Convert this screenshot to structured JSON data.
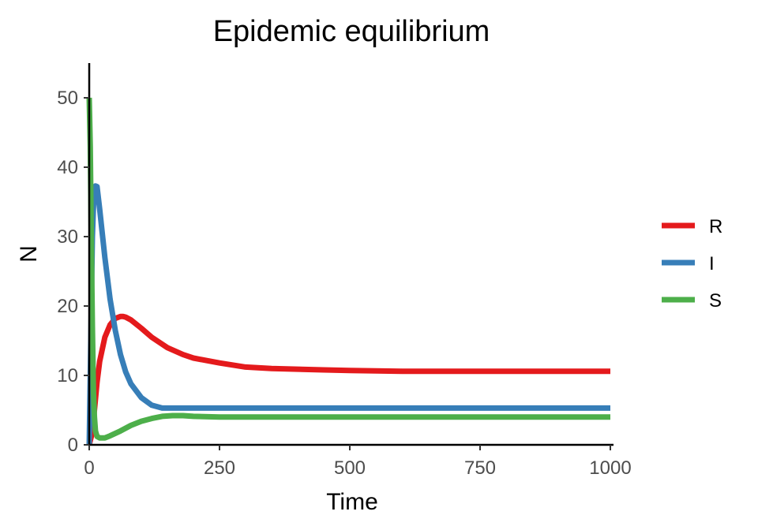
{
  "chart_data": {
    "type": "line",
    "title": "Epidemic equilibrium",
    "xlabel": "Time",
    "ylabel": "N",
    "xlim": [
      0,
      1000
    ],
    "ylim": [
      0,
      55
    ],
    "xticks": [
      0,
      250,
      500,
      750,
      1000
    ],
    "yticks": [
      0,
      10,
      20,
      30,
      40,
      50
    ],
    "grid": false,
    "legend_position": "right",
    "series": [
      {
        "name": "R",
        "color": "#e41a1c",
        "x": [
          0,
          5,
          10,
          15,
          20,
          30,
          40,
          50,
          60,
          65,
          70,
          80,
          100,
          120,
          150,
          180,
          200,
          250,
          300,
          350,
          400,
          450,
          500,
          600,
          700,
          800,
          900,
          1000
        ],
        "y": [
          0,
          1.5,
          5,
          9,
          12,
          15.5,
          17.3,
          18.2,
          18.5,
          18.5,
          18.4,
          18,
          16.8,
          15.5,
          14,
          13,
          12.5,
          11.8,
          11.2,
          11,
          10.9,
          10.8,
          10.7,
          10.6,
          10.6,
          10.6,
          10.6,
          10.6
        ]
      },
      {
        "name": "I",
        "color": "#377eb8",
        "x": [
          0,
          3,
          6,
          9,
          12,
          15,
          20,
          30,
          40,
          50,
          60,
          70,
          80,
          100,
          120,
          140,
          160,
          200,
          300,
          500,
          750,
          1000
        ],
        "y": [
          0,
          15,
          30,
          36,
          37.3,
          37.2,
          34,
          27,
          21,
          16.5,
          13,
          10.5,
          8.8,
          6.8,
          5.7,
          5.3,
          5.3,
          5.3,
          5.3,
          5.3,
          5.3,
          5.3
        ]
      },
      {
        "name": "S",
        "color": "#4daf4a",
        "x": [
          0,
          2,
          4,
          6,
          8,
          10,
          12,
          15,
          20,
          30,
          40,
          60,
          80,
          100,
          120,
          140,
          160,
          180,
          200,
          250,
          500,
          750,
          1000
        ],
        "y": [
          50,
          43,
          30,
          17,
          8,
          4,
          2,
          1.2,
          1,
          1,
          1.3,
          2,
          2.8,
          3.4,
          3.8,
          4.1,
          4.2,
          4.2,
          4.1,
          4,
          4,
          4,
          4
        ]
      }
    ]
  }
}
